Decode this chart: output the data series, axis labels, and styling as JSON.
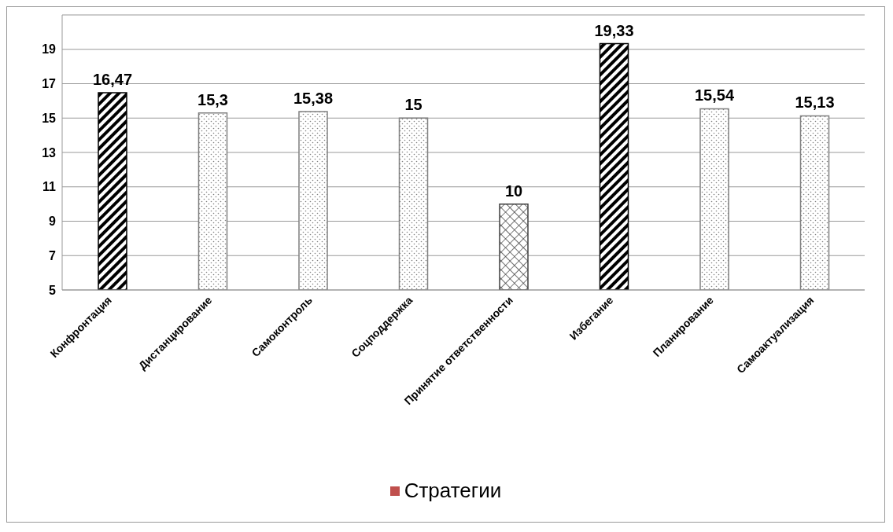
{
  "chart_data": {
    "type": "bar",
    "categories": [
      "Конфронтация",
      "Дистанцирование",
      "Самоконтроль",
      "Соцподдержка",
      "Принятие ответственности",
      "Избегание",
      "Планирование",
      "Самоактуализация"
    ],
    "series": [
      {
        "name": "Стратегии",
        "color": "#c0504d",
        "values": [
          16.47,
          15.3,
          15.38,
          15,
          10,
          19.33,
          15.54,
          15.13
        ],
        "colors": [
          "#000000",
          "#808080",
          "#808080",
          "#808080",
          "#404040",
          "#000000",
          "#808080",
          "#808080"
        ],
        "value_labels": [
          "16,47",
          "15,3",
          "15,38",
          "15",
          "10",
          "19,33",
          "15,54",
          "15,13"
        ]
      }
    ],
    "ylim": [
      5,
      21
    ],
    "yticks": [
      5,
      7,
      9,
      11,
      13,
      15,
      17,
      19
    ],
    "grid": "y",
    "legend": "bottom"
  }
}
